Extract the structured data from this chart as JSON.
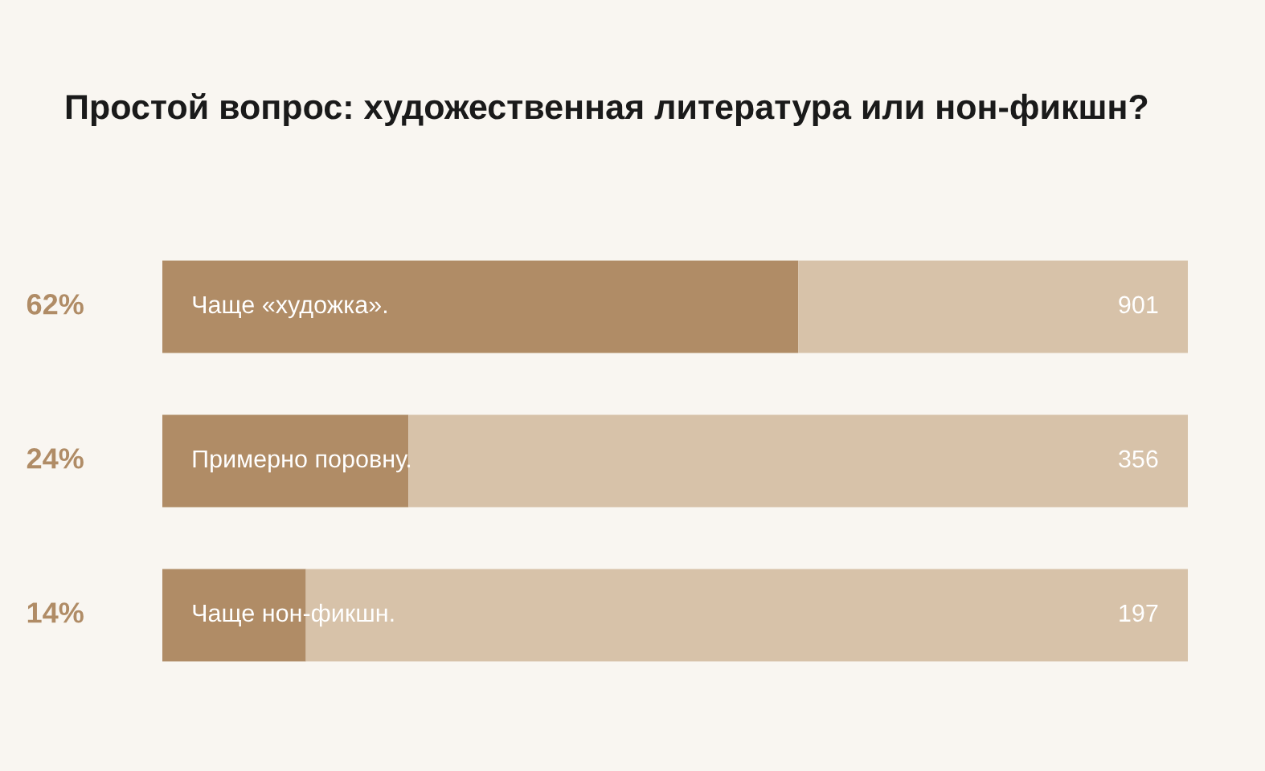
{
  "chart_data": {
    "type": "bar",
    "orientation": "horizontal",
    "stacked": true,
    "title": "Простой вопрос: художественная литература или нон-фикшн?",
    "categories": [
      "Чаще «художка».",
      "Примерно поровну.",
      "Чаще нон-фикшн."
    ],
    "series": [
      {
        "color": "#b08c66",
        "values": [
          62,
          24,
          14
        ],
        "value_labels": [
          "62%",
          "24%",
          "14%"
        ]
      },
      {
        "color": "#d7c2a9",
        "values": [
          38,
          76,
          86
        ]
      }
    ],
    "annotations": [
      "901",
      "356",
      "197"
    ],
    "xlim": [
      0,
      100
    ],
    "tick_labels": false
  }
}
